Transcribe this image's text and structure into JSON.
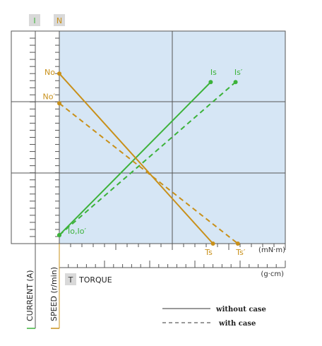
{
  "chart_data": {
    "type": "line",
    "axis_badges": {
      "current": "I",
      "speed": "N",
      "torque": "T"
    },
    "axis_labels": {
      "current": "CURRENT (A)",
      "speed": "SPEED (r/min)",
      "torque": "TORQUE"
    },
    "units": {
      "torque_si": "(mN·m)",
      "torque_cgs": "(g·cm)"
    },
    "x_range": [
      0,
      1
    ],
    "y_range": [
      0,
      1
    ],
    "grid": true,
    "colors": {
      "current": "#3cb23a",
      "speed": "#c8901a",
      "plot_bg": "#d6e6f5",
      "grid": "#555555"
    },
    "series": [
      {
        "name": "Current",
        "case": "without case",
        "color": "#3cb23a",
        "style": "solid",
        "points": [
          {
            "x": 0.0,
            "y": 0.04,
            "label": "Io,Io′"
          },
          {
            "x": 0.67,
            "y": 0.76,
            "label": "Is"
          }
        ]
      },
      {
        "name": "Current",
        "case": "with case",
        "color": "#3cb23a",
        "style": "dashed",
        "points": [
          {
            "x": 0.0,
            "y": 0.04,
            "label": ""
          },
          {
            "x": 0.78,
            "y": 0.76,
            "label": "Is′"
          }
        ]
      },
      {
        "name": "Speed",
        "case": "without case",
        "color": "#c8901a",
        "style": "solid",
        "points": [
          {
            "x": 0.0,
            "y": 0.8,
            "label": "No"
          },
          {
            "x": 0.68,
            "y": 0.0,
            "label": "Ts"
          }
        ]
      },
      {
        "name": "Speed",
        "case": "with case",
        "color": "#c8901a",
        "style": "dashed",
        "points": [
          {
            "x": 0.0,
            "y": 0.66,
            "label": "No′"
          },
          {
            "x": 0.79,
            "y": 0.0,
            "label": "Ts′"
          }
        ]
      }
    ],
    "legend": [
      {
        "label": "without case",
        "style": "solid"
      },
      {
        "label": "with case",
        "style": "dashed"
      }
    ],
    "legend_position": "bottom-right"
  }
}
